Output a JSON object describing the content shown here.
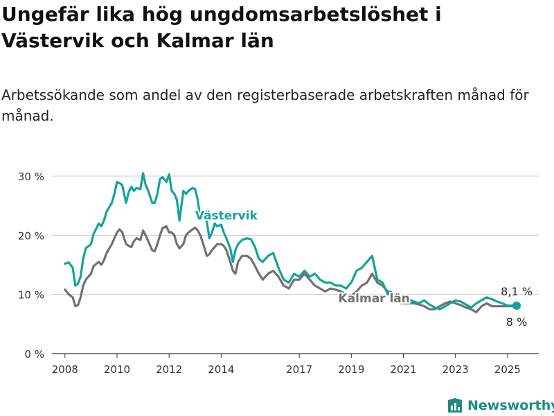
{
  "title": "Ungefär lika hög ungdomsarbetslöshet i Västervik och Kalmar län",
  "subtitle": "Arbetssökande som andel av den registerbaserade arbetskraften månad för månad.",
  "brand": "Newsworthy",
  "colors": {
    "vastervik": "#13a39b",
    "kalmar": "#717171",
    "grid": "#cccccc",
    "axis": "#333333",
    "brand": "#1e8c84"
  },
  "chart_data": {
    "type": "line",
    "xlim": [
      2007.5,
      2026.2
    ],
    "ylim": [
      0,
      30
    ],
    "grid": true,
    "y_ticks": [
      {
        "value": 0,
        "label": "0 %"
      },
      {
        "value": 10,
        "label": "10 %"
      },
      {
        "value": 20,
        "label": "20 %"
      },
      {
        "value": 30,
        "label": "30 %"
      }
    ],
    "x_ticks": [
      {
        "value": 2008,
        "label": "2008"
      },
      {
        "value": 2010,
        "label": "2010"
      },
      {
        "value": 2012,
        "label": "2012"
      },
      {
        "value": 2014,
        "label": "2014"
      },
      {
        "value": 2017,
        "label": "2017"
      },
      {
        "value": 2019,
        "label": "2019"
      },
      {
        "value": 2021,
        "label": "2021"
      },
      {
        "value": 2023,
        "label": "2023"
      },
      {
        "value": 2025,
        "label": "2025"
      }
    ],
    "series": [
      {
        "name": "Västervik",
        "color": "#13a39b",
        "label_at": [
          2013.0,
          22.7
        ],
        "end_label": "8,1 %",
        "x": [
          2008.0,
          2008.15,
          2008.3,
          2008.4,
          2008.5,
          2008.6,
          2008.7,
          2008.8,
          2009.0,
          2009.1,
          2009.3,
          2009.4,
          2009.5,
          2009.6,
          2009.8,
          2009.9,
          2010.0,
          2010.1,
          2010.2,
          2010.35,
          2010.45,
          2010.55,
          2010.65,
          2010.75,
          2010.9,
          2011.0,
          2011.1,
          2011.2,
          2011.35,
          2011.45,
          2011.55,
          2011.65,
          2011.75,
          2011.9,
          2012.0,
          2012.1,
          2012.2,
          2012.3,
          2012.4,
          2012.55,
          2012.65,
          2012.75,
          2012.9,
          2013.0,
          2013.1,
          2013.2,
          2013.35,
          2013.45,
          2013.55,
          2013.65,
          2013.75,
          2013.85,
          2014.0,
          2014.1,
          2014.2,
          2014.35,
          2014.45,
          2014.55,
          2014.65,
          2014.8,
          2015.0,
          2015.15,
          2015.3,
          2015.45,
          2015.6,
          2015.8,
          2016.0,
          2016.2,
          2016.4,
          2016.6,
          2016.8,
          2017.0,
          2017.2,
          2017.4,
          2017.6,
          2017.8,
          2018.0,
          2018.2,
          2018.4,
          2018.6,
          2018.8,
          2019.0,
          2019.2,
          2019.4,
          2019.6,
          2019.8,
          2020.0,
          2020.2,
          2020.4,
          2020.5,
          2020.65,
          2020.8,
          2020.9,
          2021.0,
          2021.2,
          2021.4,
          2021.6,
          2021.8,
          2022.0,
          2022.2,
          2022.4,
          2022.6,
          2022.8,
          2023.0,
          2023.2,
          2023.4,
          2023.6,
          2023.8,
          2024.0,
          2024.2,
          2024.4,
          2024.6,
          2024.8,
          2025.0,
          2025.2,
          2025.35
        ],
        "y": [
          15.2,
          15.4,
          14.5,
          11.5,
          11.8,
          13.0,
          16.0,
          17.8,
          18.5,
          20.2,
          22.0,
          21.5,
          22.5,
          24.0,
          25.5,
          27.0,
          29.0,
          28.8,
          28.5,
          25.5,
          27.3,
          28.2,
          27.5,
          28.0,
          27.8,
          30.5,
          28.5,
          27.5,
          25.5,
          25.5,
          27.0,
          29.5,
          29.8,
          29.0,
          30.3,
          27.5,
          27.0,
          26.0,
          22.5,
          27.5,
          27.0,
          27.5,
          28.0,
          27.8,
          26.0,
          22.7,
          23.0,
          22.3,
          19.5,
          20.5,
          22.0,
          21.5,
          21.8,
          20.5,
          19.5,
          17.8,
          15.5,
          17.5,
          18.5,
          19.2,
          19.5,
          19.3,
          18.0,
          16.0,
          15.5,
          16.5,
          17.0,
          14.5,
          12.5,
          12.0,
          13.5,
          13.0,
          14.0,
          13.0,
          13.5,
          12.5,
          12.0,
          12.0,
          11.5,
          11.5,
          11.0,
          12.0,
          14.0,
          14.5,
          15.5,
          16.5,
          12.5,
          12.0,
          10.0,
          10.5,
          9.5,
          9.0,
          8.5,
          9.5,
          9.2,
          8.8,
          8.5,
          9.0,
          8.3,
          7.8,
          7.5,
          8.0,
          8.5,
          9.0,
          8.8,
          8.3,
          7.8,
          8.5,
          9.0,
          9.5,
          9.2,
          8.8,
          8.5,
          8.1,
          8.1,
          8.1
        ]
      },
      {
        "name": "Kalmar län",
        "color": "#717171",
        "label_at": [
          2018.5,
          8.7
        ],
        "end_label": "8 %",
        "x": [
          2008.0,
          2008.15,
          2008.3,
          2008.4,
          2008.5,
          2008.6,
          2008.7,
          2008.8,
          2009.0,
          2009.1,
          2009.3,
          2009.4,
          2009.5,
          2009.6,
          2009.8,
          2009.9,
          2010.0,
          2010.1,
          2010.2,
          2010.35,
          2010.45,
          2010.55,
          2010.65,
          2010.75,
          2010.9,
          2011.0,
          2011.1,
          2011.2,
          2011.35,
          2011.45,
          2011.55,
          2011.65,
          2011.75,
          2011.9,
          2012.0,
          2012.1,
          2012.2,
          2012.3,
          2012.4,
          2012.55,
          2012.65,
          2012.75,
          2012.9,
          2013.0,
          2013.1,
          2013.2,
          2013.35,
          2013.45,
          2013.55,
          2013.65,
          2013.75,
          2013.85,
          2014.0,
          2014.1,
          2014.2,
          2014.35,
          2014.45,
          2014.55,
          2014.65,
          2014.8,
          2015.0,
          2015.15,
          2015.3,
          2015.45,
          2015.6,
          2015.8,
          2016.0,
          2016.2,
          2016.4,
          2016.6,
          2016.8,
          2017.0,
          2017.2,
          2017.4,
          2017.6,
          2017.8,
          2018.0,
          2018.2,
          2018.4,
          2018.6,
          2018.8,
          2019.0,
          2019.2,
          2019.4,
          2019.6,
          2019.8,
          2020.0,
          2020.2,
          2020.4,
          2020.5,
          2020.65,
          2020.8,
          2020.9,
          2021.0,
          2021.2,
          2021.4,
          2021.6,
          2021.8,
          2022.0,
          2022.2,
          2022.4,
          2022.6,
          2022.8,
          2023.0,
          2023.2,
          2023.4,
          2023.6,
          2023.8,
          2024.0,
          2024.2,
          2024.4,
          2024.6,
          2024.8,
          2025.0,
          2025.2,
          2025.35
        ],
        "y": [
          10.8,
          10.0,
          9.5,
          8.0,
          8.2,
          9.5,
          11.5,
          12.5,
          13.5,
          14.8,
          15.5,
          15.0,
          15.8,
          17.0,
          18.5,
          19.5,
          20.5,
          21.0,
          20.5,
          18.5,
          18.2,
          18.0,
          19.0,
          19.5,
          19.2,
          20.8,
          20.0,
          19.0,
          17.5,
          17.3,
          18.5,
          20.0,
          21.2,
          21.5,
          20.5,
          20.5,
          20.0,
          18.5,
          17.8,
          18.5,
          20.0,
          20.5,
          21.0,
          21.3,
          20.8,
          20.0,
          18.0,
          16.5,
          16.8,
          17.5,
          18.0,
          18.5,
          18.5,
          18.2,
          17.5,
          15.5,
          14.0,
          13.5,
          15.5,
          16.5,
          16.5,
          16.0,
          14.8,
          13.5,
          12.5,
          13.5,
          14.0,
          13.0,
          11.5,
          11.0,
          12.5,
          12.5,
          13.5,
          12.5,
          11.5,
          11.0,
          10.5,
          11.0,
          10.8,
          10.5,
          10.0,
          9.8,
          10.5,
          11.5,
          12.0,
          13.5,
          12.0,
          11.5,
          10.5,
          10.0,
          9.8,
          9.5,
          9.0,
          8.5,
          8.5,
          8.5,
          8.3,
          8.0,
          7.5,
          7.5,
          8.0,
          8.5,
          8.8,
          8.5,
          8.2,
          7.8,
          7.5,
          7.0,
          8.0,
          8.5,
          8.0,
          8.0,
          8.0,
          8.0,
          8.0,
          8.0
        ]
      }
    ]
  }
}
